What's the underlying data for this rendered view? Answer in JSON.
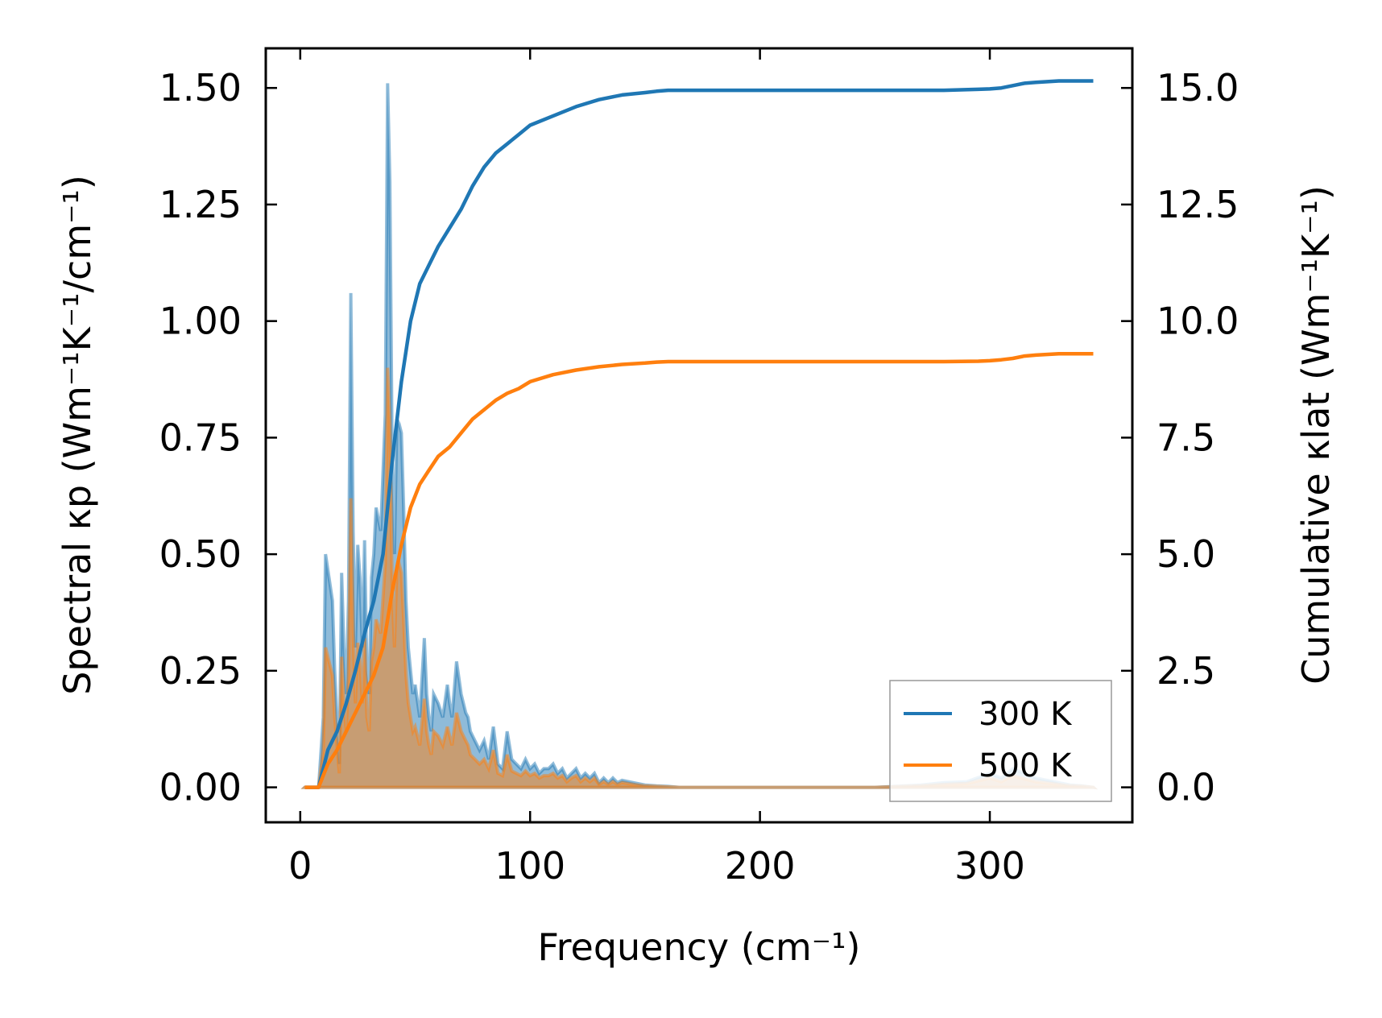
{
  "chart_data": {
    "type": "line",
    "xlabel": "Frequency (cm⁻¹)",
    "ylabel_left": "Spectral κp (Wm⁻¹K⁻¹/cm⁻¹)",
    "ylabel_right": "Cumulative κlat (Wm⁻¹K⁻¹)",
    "xlim": [
      -15,
      362
    ],
    "ylim_left": [
      -0.075,
      1.585
    ],
    "ylim_right": [
      -0.75,
      15.85
    ],
    "x_ticks": [
      "0",
      "100",
      "200",
      "300"
    ],
    "y_left_ticks": [
      "0.00",
      "0.25",
      "0.50",
      "0.75",
      "1.00",
      "1.25",
      "1.50"
    ],
    "y_right_ticks": [
      "0.0",
      "2.5",
      "5.0",
      "7.5",
      "10.0",
      "12.5",
      "15.0"
    ],
    "grid": false,
    "legend_position": "bottom-right",
    "colors": {
      "300 K": "#1f77b4",
      "500 K": "#ff7f0e"
    },
    "series": [
      {
        "name": "300 K",
        "axis": "right",
        "role": "cumulative",
        "x": [
          2,
          8,
          12,
          16,
          20,
          24,
          28,
          32,
          36,
          40,
          44,
          48,
          52,
          56,
          60,
          65,
          70,
          75,
          80,
          85,
          90,
          95,
          100,
          110,
          120,
          130,
          140,
          150,
          155,
          160,
          170,
          180,
          200,
          220,
          240,
          260,
          280,
          295,
          300,
          305,
          310,
          315,
          320,
          330,
          345
        ],
        "y": [
          0,
          0,
          0.8,
          1.2,
          1.8,
          2.5,
          3.3,
          4.0,
          5.0,
          7.0,
          8.7,
          10.0,
          10.8,
          11.2,
          11.6,
          12.0,
          12.4,
          12.9,
          13.3,
          13.6,
          13.8,
          14.0,
          14.2,
          14.4,
          14.6,
          14.75,
          14.85,
          14.9,
          14.93,
          14.95,
          14.95,
          14.95,
          14.95,
          14.95,
          14.95,
          14.95,
          14.95,
          14.97,
          14.98,
          15.0,
          15.05,
          15.1,
          15.12,
          15.15,
          15.15
        ]
      },
      {
        "name": "500 K",
        "axis": "right",
        "role": "cumulative",
        "x": [
          2,
          8,
          12,
          16,
          20,
          24,
          28,
          32,
          36,
          40,
          44,
          48,
          52,
          56,
          60,
          65,
          70,
          75,
          80,
          85,
          90,
          95,
          100,
          110,
          120,
          130,
          140,
          150,
          155,
          160,
          170,
          180,
          200,
          220,
          240,
          260,
          280,
          295,
          300,
          305,
          310,
          315,
          320,
          330,
          345
        ],
        "y": [
          0,
          0,
          0.5,
          0.8,
          1.2,
          1.6,
          2.0,
          2.4,
          3.0,
          4.2,
          5.2,
          6.0,
          6.5,
          6.8,
          7.1,
          7.3,
          7.6,
          7.9,
          8.1,
          8.3,
          8.45,
          8.55,
          8.7,
          8.85,
          8.95,
          9.02,
          9.07,
          9.1,
          9.12,
          9.13,
          9.13,
          9.13,
          9.13,
          9.13,
          9.13,
          9.13,
          9.13,
          9.14,
          9.15,
          9.17,
          9.2,
          9.25,
          9.27,
          9.3,
          9.3
        ]
      },
      {
        "name": "300 K",
        "axis": "left",
        "role": "spectral",
        "x": [
          2,
          8,
          10,
          11,
          14,
          15,
          17,
          18,
          19,
          20,
          21,
          22,
          23,
          24,
          25,
          26,
          27,
          28,
          29,
          30,
          31,
          32,
          33,
          35,
          37,
          38,
          39,
          40,
          41,
          42,
          43,
          44,
          45,
          46,
          47,
          48,
          49,
          50,
          52,
          54,
          55,
          56,
          57,
          58,
          60,
          62,
          64,
          65,
          66,
          68,
          70,
          72,
          73,
          74,
          76,
          78,
          80,
          82,
          84,
          86,
          88,
          90,
          92,
          94,
          96,
          98,
          100,
          102,
          104,
          106,
          108,
          110,
          112,
          114,
          116,
          118,
          120,
          122,
          124,
          126,
          128,
          130,
          132,
          134,
          136,
          138,
          140,
          145,
          150,
          155,
          160,
          165,
          170,
          180,
          200,
          250,
          270,
          280,
          290,
          300,
          305,
          310,
          315,
          320,
          325,
          330,
          335,
          340,
          345
        ],
        "y": [
          0,
          0,
          0.15,
          0.5,
          0.4,
          0.25,
          0.05,
          0.46,
          0.3,
          0.2,
          0.4,
          1.06,
          0.55,
          0.3,
          0.52,
          0.45,
          0.3,
          0.53,
          0.25,
          0.2,
          0.45,
          0.5,
          0.6,
          0.55,
          0.8,
          1.51,
          1.3,
          0.7,
          0.5,
          0.79,
          0.78,
          0.76,
          0.6,
          0.4,
          0.3,
          0.25,
          0.2,
          0.22,
          0.15,
          0.32,
          0.2,
          0.15,
          0.12,
          0.2,
          0.18,
          0.15,
          0.22,
          0.18,
          0.15,
          0.27,
          0.2,
          0.16,
          0.15,
          0.12,
          0.1,
          0.08,
          0.1,
          0.06,
          0.13,
          0.05,
          0.04,
          0.12,
          0.06,
          0.05,
          0.04,
          0.06,
          0.04,
          0.05,
          0.03,
          0.04,
          0.04,
          0.05,
          0.03,
          0.04,
          0.02,
          0.03,
          0.04,
          0.02,
          0.03,
          0.02,
          0.03,
          0.01,
          0.02,
          0.01,
          0.02,
          0.01,
          0.015,
          0.01,
          0.005,
          0.003,
          0.002,
          0,
          0,
          0,
          0,
          0,
          0.005,
          0.01,
          0.012,
          0.03,
          0.02,
          0.04,
          0.03,
          0.02,
          0.015,
          0.01,
          0.005,
          0.003,
          0
        ]
      },
      {
        "name": "500 K",
        "axis": "left",
        "role": "spectral",
        "x": [
          2,
          8,
          10,
          11,
          14,
          15,
          17,
          18,
          19,
          20,
          21,
          22,
          23,
          24,
          25,
          26,
          27,
          28,
          29,
          30,
          31,
          32,
          33,
          35,
          37,
          38,
          39,
          40,
          41,
          42,
          43,
          44,
          45,
          46,
          47,
          48,
          49,
          50,
          52,
          54,
          55,
          56,
          57,
          58,
          60,
          62,
          64,
          65,
          66,
          68,
          70,
          72,
          73,
          74,
          76,
          78,
          80,
          82,
          84,
          86,
          88,
          90,
          92,
          94,
          96,
          98,
          100,
          102,
          104,
          106,
          108,
          110,
          112,
          114,
          116,
          118,
          120,
          122,
          124,
          126,
          128,
          130,
          132,
          134,
          136,
          138,
          140,
          145,
          150,
          155,
          160,
          165,
          170,
          180,
          200,
          250,
          270,
          280,
          290,
          300,
          305,
          310,
          315,
          320,
          325,
          330,
          335,
          340,
          345
        ],
        "y": [
          0,
          0,
          0.08,
          0.3,
          0.24,
          0.15,
          0.03,
          0.28,
          0.18,
          0.12,
          0.24,
          0.62,
          0.33,
          0.18,
          0.31,
          0.27,
          0.18,
          0.32,
          0.15,
          0.12,
          0.27,
          0.3,
          0.36,
          0.33,
          0.48,
          0.9,
          0.78,
          0.42,
          0.3,
          0.47,
          0.48,
          0.46,
          0.36,
          0.24,
          0.18,
          0.15,
          0.12,
          0.13,
          0.09,
          0.19,
          0.12,
          0.09,
          0.07,
          0.12,
          0.11,
          0.09,
          0.13,
          0.11,
          0.09,
          0.16,
          0.12,
          0.1,
          0.09,
          0.07,
          0.06,
          0.05,
          0.06,
          0.04,
          0.08,
          0.03,
          0.025,
          0.07,
          0.035,
          0.03,
          0.025,
          0.035,
          0.025,
          0.03,
          0.02,
          0.025,
          0.025,
          0.03,
          0.02,
          0.025,
          0.012,
          0.02,
          0.025,
          0.012,
          0.02,
          0.012,
          0.02,
          0.006,
          0.012,
          0.006,
          0.012,
          0.006,
          0.01,
          0.006,
          0.003,
          0.002,
          0.001,
          0,
          0,
          0,
          0,
          0,
          0.003,
          0.006,
          0.008,
          0.02,
          0.012,
          0.025,
          0.018,
          0.012,
          0.009,
          0.006,
          0.003,
          0.002,
          0
        ]
      }
    ]
  }
}
